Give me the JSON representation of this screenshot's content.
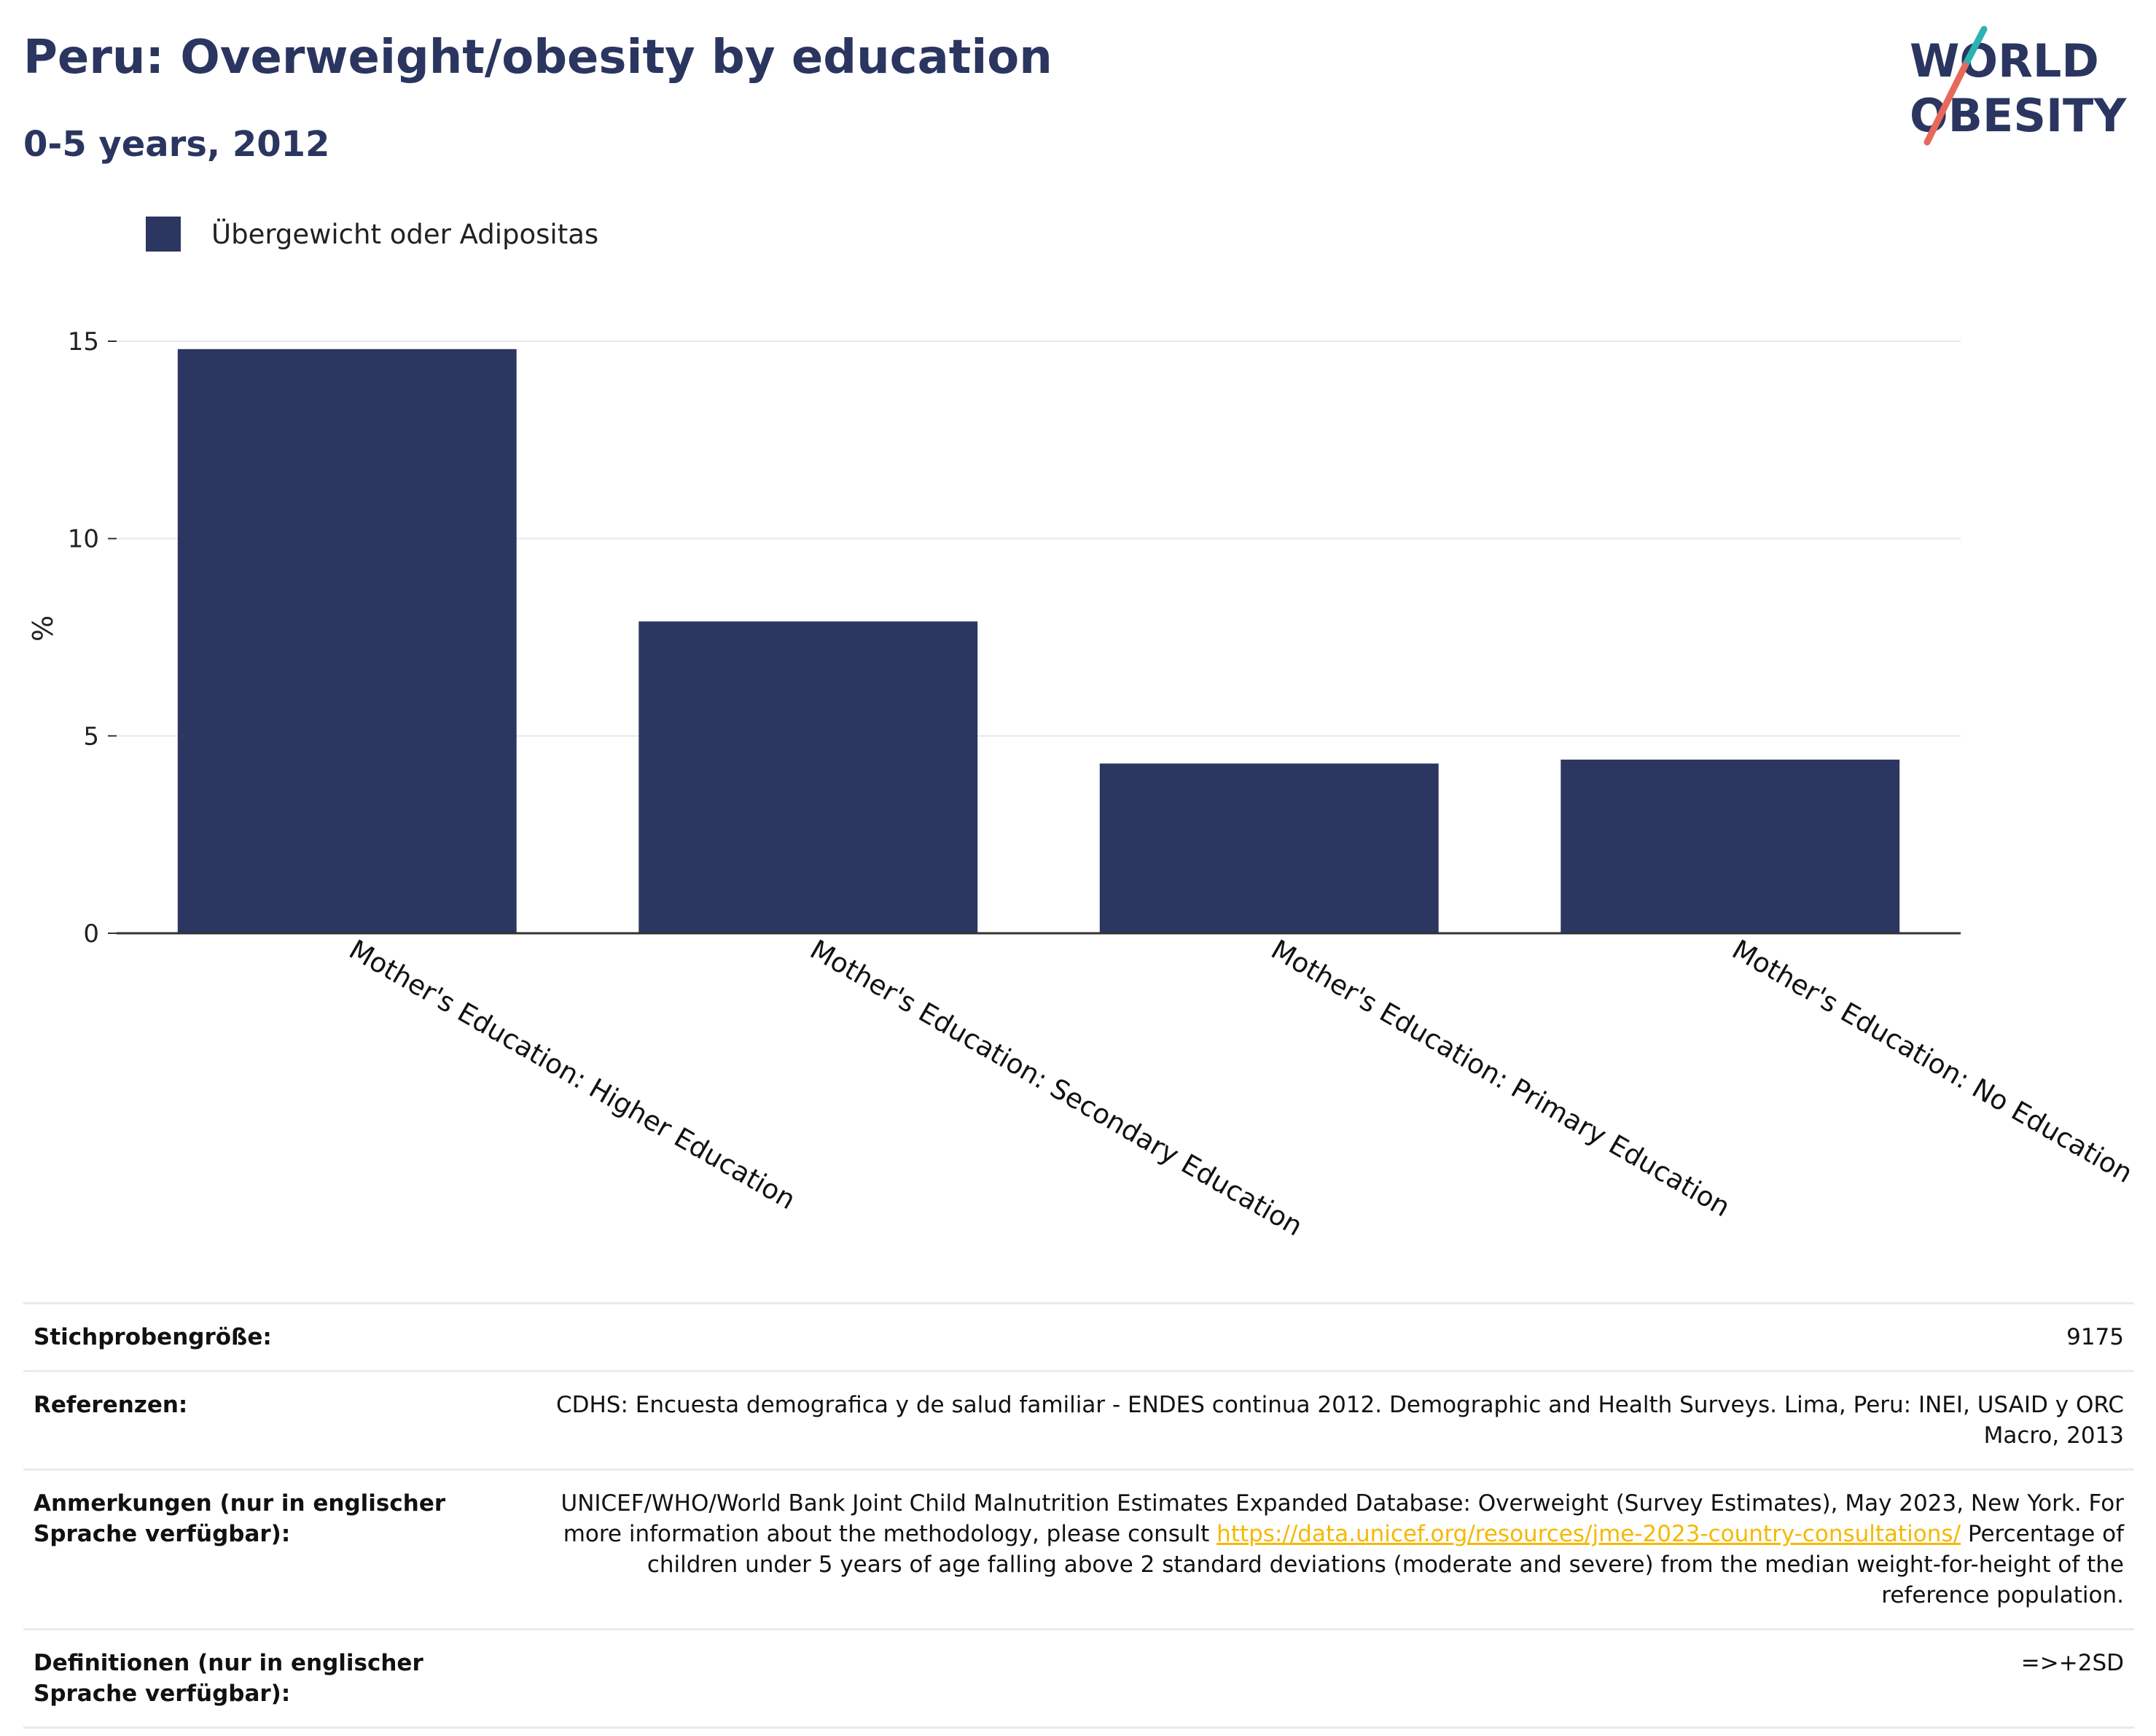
{
  "header": {
    "title": "Peru: Overweight/obesity by education",
    "subtitle": "0-5 years, 2012"
  },
  "logo": {
    "line1": "WORLD",
    "line2": "OBESITY",
    "slash_colors": [
      "#2bb3b1",
      "#e8685a"
    ]
  },
  "colors": {
    "bar": "#2b3661",
    "title": "#2a3560",
    "link": "#f5b800"
  },
  "chart_data": {
    "type": "bar",
    "categories": [
      "Mother's Education: Higher Education",
      "Mother's Education: Secondary Education",
      "Mother's Education: Primary Education",
      "Mother's Education: No Education"
    ],
    "series": [
      {
        "name": "Übergewicht oder Adipositas",
        "values": [
          14.8,
          7.9,
          4.3,
          4.4
        ]
      }
    ],
    "ylabel": "%",
    "xlabel": "",
    "ylim": [
      0,
      15
    ],
    "yticks": [
      0,
      5,
      10,
      15
    ],
    "grid": true,
    "legend_position": "top-left"
  },
  "info": {
    "rows": [
      {
        "key": "Stichprobengröße:",
        "value": "9175"
      },
      {
        "key": "Referenzen:",
        "value": "CDHS: Encuesta demografica y de salud familiar - ENDES continua 2012. Demographic and Health Surveys. Lima, Peru: INEI, USAID y ORC Macro, 2013"
      },
      {
        "key": "Anmerkungen (nur in englischer Sprache verfügbar):",
        "value_pre": "UNICEF/WHO/World Bank Joint Child Malnutrition Estimates Expanded Database: Overweight (Survey Estimates), May 2023, New York. For more information about the methodology, please consult ",
        "link": "https://data.unicef.org/resources/jme-2023-country-consultations/",
        "value_post": " Percentage of children under 5 years of age falling above 2 standard deviations (moderate and severe) from the median weight-for-height of the reference population."
      },
      {
        "key": "Definitionen (nur in englischer Sprache verfügbar):",
        "value": "=>+2SD"
      }
    ]
  }
}
